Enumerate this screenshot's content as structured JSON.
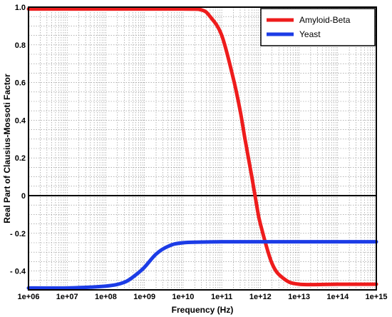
{
  "chart_data": {
    "type": "line",
    "title": "",
    "xlabel": "Frequency (Hz)",
    "ylabel": "Real Part of Clausius-Mossoti Factor",
    "x_scale": "log",
    "xlim": [
      1000000.0,
      1000000000000000.0
    ],
    "ylim": [
      -0.5,
      1.0
    ],
    "x_ticks": [
      "1e+06",
      "1e+07",
      "1e+08",
      "1e+09",
      "1e+10",
      "1e+11",
      "1e+12",
      "1e+13",
      "1e+14",
      "1e+15"
    ],
    "y_ticks": [
      {
        "value": 1.0,
        "label": "1.0"
      },
      {
        "value": 0.8,
        "label": "0.8"
      },
      {
        "value": 0.6,
        "label": "0.6"
      },
      {
        "value": 0.4,
        "label": "0.4"
      },
      {
        "value": 0.2,
        "label": "0.2"
      },
      {
        "value": 0.0,
        "label": "0"
      },
      {
        "value": -0.2,
        "label": "- 0.2"
      },
      {
        "value": -0.4,
        "label": "- 0.4"
      }
    ],
    "grid": true,
    "legend_position": "top-right",
    "series": [
      {
        "name": "Amyloid-Beta",
        "color": "#ee1c1c",
        "x": [
          1000000.0,
          100000000.0,
          10000000000.0,
          30000000000.0,
          50000000000.0,
          100000000000.0,
          200000000000.0,
          300000000000.0,
          400000000000.0,
          600000000000.0,
          800000000000.0,
          1000000000000.0,
          2000000000000.0,
          4000000000000.0,
          10000000000000.0,
          100000000000000.0,
          1000000000000000.0
        ],
        "y": [
          0.99,
          0.99,
          0.99,
          0.985,
          0.95,
          0.85,
          0.62,
          0.45,
          0.3,
          0.1,
          -0.05,
          -0.15,
          -0.36,
          -0.44,
          -0.47,
          -0.47,
          -0.47
        ]
      },
      {
        "name": "Yeast",
        "color": "#1c3ce6",
        "x": [
          1000000.0,
          10000000.0,
          100000000.0,
          300000000.0,
          600000000.0,
          1000000000.0,
          2000000000.0,
          4000000000.0,
          10000000000.0,
          100000000000.0,
          1000000000000.0,
          10000000000000.0,
          100000000000000.0,
          1000000000000000.0
        ],
        "y": [
          -0.49,
          -0.49,
          -0.48,
          -0.46,
          -0.42,
          -0.38,
          -0.31,
          -0.27,
          -0.25,
          -0.245,
          -0.245,
          -0.245,
          -0.245,
          -0.245
        ]
      }
    ]
  }
}
